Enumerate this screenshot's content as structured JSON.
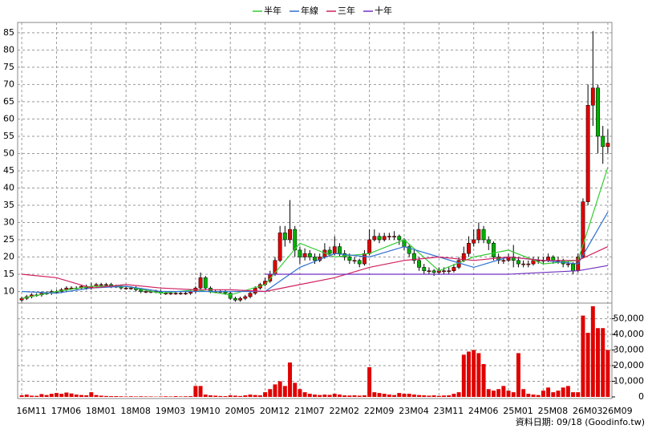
{
  "chart_data": {
    "type": "candlestick",
    "categories": [
      "16M11",
      null,
      null,
      null,
      null,
      null,
      null,
      "17M06",
      null,
      null,
      null,
      null,
      null,
      null,
      "18M01",
      null,
      null,
      null,
      null,
      null,
      null,
      "18M08",
      null,
      null,
      null,
      null,
      null,
      null,
      "19M03",
      null,
      null,
      null,
      null,
      null,
      null,
      "19M10",
      null,
      null,
      null,
      null,
      null,
      null,
      "20M05",
      null,
      null,
      null,
      null,
      null,
      null,
      "20M12",
      null,
      null,
      null,
      null,
      null,
      null,
      "21M07",
      null,
      null,
      null,
      null,
      null,
      null,
      "22M02",
      null,
      null,
      null,
      null,
      null,
      null,
      "22M09",
      null,
      null,
      null,
      null,
      null,
      null,
      "23M04",
      null,
      null,
      null,
      null,
      null,
      null,
      "23M11",
      null,
      null,
      null,
      null,
      null,
      null,
      "24M06",
      null,
      null,
      null,
      null,
      null,
      null,
      "25M01",
      null,
      null,
      null,
      null,
      null,
      null,
      "25M08",
      null,
      null,
      null,
      null,
      null,
      null,
      "26M03",
      null,
      null,
      null,
      null,
      null,
      "26M09"
    ],
    "open": [
      7.5,
      8,
      8.5,
      9,
      9,
      9.5,
      9.5,
      10,
      10,
      10.5,
      11,
      11,
      11,
      11.5,
      11,
      11.5,
      12,
      12,
      12,
      11.5,
      11.5,
      11,
      11,
      11,
      10.5,
      10,
      10,
      10,
      10,
      9.5,
      9.5,
      9.5,
      9.5,
      9.5,
      9.5,
      10,
      11,
      14,
      11,
      10,
      10,
      10,
      9.5,
      8,
      7.5,
      8,
      8.5,
      9.5,
      11,
      12,
      13,
      15,
      19,
      27,
      25,
      28,
      22,
      20,
      21,
      20,
      19,
      20,
      22,
      21,
      23,
      21,
      20,
      19,
      19,
      18,
      21,
      25,
      26,
      25,
      26,
      26,
      26,
      25,
      23,
      21,
      19,
      17,
      16,
      16,
      15.5,
      16,
      16,
      16,
      17,
      19,
      21,
      24,
      25,
      28,
      25,
      24,
      20,
      19,
      19,
      20,
      19,
      18,
      18,
      18,
      19,
      19,
      19,
      20,
      19,
      19,
      18,
      18,
      16,
      20,
      36,
      64,
      69,
      55,
      52
    ],
    "high": [
      8.5,
      9,
      9.5,
      9.5,
      10,
      10,
      10.5,
      10.5,
      11,
      11.5,
      11.5,
      11.5,
      12,
      12,
      12.5,
      12.5,
      12.5,
      12.5,
      12.5,
      12,
      12,
      11.5,
      11.5,
      11.5,
      11,
      10.5,
      10.5,
      10.5,
      10.5,
      10,
      10,
      10,
      10,
      10,
      10.5,
      11.5,
      15.5,
      14.5,
      11.5,
      10.5,
      10.5,
      10.5,
      10,
      8.5,
      8.5,
      9,
      10,
      11.5,
      12.5,
      14,
      16,
      20,
      29,
      29,
      36.5,
      29,
      23,
      22.5,
      22,
      21,
      21,
      24,
      23,
      26,
      24,
      22,
      21,
      20,
      19.5,
      22,
      28,
      28,
      27,
      27,
      27,
      27.5,
      26.5,
      25.5,
      23.5,
      22,
      20,
      18,
      17,
      16.5,
      17,
      17,
      17,
      18,
      20,
      23,
      26,
      28,
      30,
      29,
      26,
      24.5,
      21,
      20,
      21,
      23.5,
      20,
      19,
      19,
      20,
      20,
      20,
      21,
      20.5,
      20,
      19.5,
      19,
      18.5,
      21,
      37,
      70,
      85.5,
      70,
      58,
      57
    ],
    "low": [
      7,
      7.5,
      8,
      8.5,
      8.5,
      9,
      9,
      9.5,
      9.5,
      10,
      10.5,
      10.5,
      10.5,
      10.5,
      10.5,
      11,
      11.5,
      11.5,
      11,
      11,
      10.5,
      10.5,
      10.5,
      10,
      9.5,
      9.5,
      9.5,
      9.5,
      9,
      9,
      9,
      9,
      9,
      9,
      9,
      9.5,
      10.5,
      10.5,
      9.5,
      9.5,
      9.5,
      9,
      7.5,
      7,
      7,
      7.5,
      8,
      9,
      10.5,
      11.5,
      12.5,
      14.5,
      18.5,
      23,
      24,
      20,
      18,
      19,
      19,
      18,
      18.5,
      19.5,
      20,
      20.5,
      20,
      19,
      18,
      18,
      17,
      17.5,
      20.5,
      24.5,
      24,
      24.5,
      25,
      25,
      23.5,
      22,
      20,
      18,
      16,
      15,
      15,
      14.5,
      15,
      15,
      15,
      15.5,
      16.5,
      18.5,
      20,
      23,
      24,
      24,
      22,
      19,
      18,
      18,
      18.5,
      17,
      17,
      17,
      17,
      17.5,
      18,
      18,
      18.5,
      18,
      18,
      17,
      17,
      15,
      15.5,
      19.5,
      35,
      58,
      50,
      47,
      50
    ],
    "close": [
      8,
      8.5,
      9,
      9,
      9.5,
      9.5,
      10,
      10,
      10.5,
      11,
      11,
      11,
      11.5,
      11,
      11.5,
      12,
      12,
      12,
      11.5,
      11.5,
      11,
      11,
      11,
      10.5,
      10,
      10,
      10,
      10,
      9.5,
      9.5,
      9.5,
      9.5,
      9.5,
      9.5,
      10,
      11,
      14,
      11,
      10,
      10,
      10,
      9.5,
      8,
      7.5,
      8,
      8.5,
      9.5,
      11,
      12,
      13,
      15,
      19,
      27,
      25,
      28,
      22,
      20,
      21,
      20,
      19,
      20,
      22,
      21,
      23,
      21,
      20,
      19,
      19,
      18,
      21,
      25,
      26,
      25,
      26,
      26,
      26,
      25,
      23,
      21,
      19,
      17,
      16,
      16,
      15.5,
      16,
      16,
      16,
      17,
      19,
      21,
      24,
      25,
      28,
      25,
      24,
      20,
      19,
      19,
      20,
      19,
      18,
      18,
      18,
      19,
      19,
      19,
      20,
      19,
      19,
      18,
      18,
      16,
      20,
      36,
      64,
      69,
      55,
      52,
      53
    ],
    "volume": [
      1000,
      1500,
      800,
      700,
      1800,
      1200,
      2000,
      2500,
      2000,
      2800,
      2200,
      1500,
      1200,
      1000,
      3000,
      1200,
      800,
      600,
      500,
      500,
      400,
      300,
      400,
      300,
      400,
      300,
      300,
      200,
      300,
      400,
      300,
      500,
      300,
      400,
      500,
      7000,
      7000,
      1500,
      1000,
      800,
      600,
      500,
      1000,
      800,
      600,
      1000,
      1500,
      1200,
      1000,
      3000,
      5000,
      8000,
      10000,
      7000,
      22000,
      9000,
      5000,
      3000,
      2000,
      1500,
      1200,
      1500,
      1300,
      2000,
      1500,
      1000,
      900,
      1000,
      800,
      1000,
      19000,
      3000,
      2500,
      2000,
      1500,
      1200,
      2500,
      2000,
      2000,
      1500,
      1200,
      1000,
      800,
      1000,
      700,
      900,
      1000,
      2000,
      3000,
      27000,
      29000,
      30000,
      28000,
      21000,
      5000,
      4000,
      5000,
      7000,
      4000,
      3000,
      28000,
      5000,
      2000,
      1500,
      1200,
      4000,
      6000,
      3000,
      4000,
      6000,
      7000,
      3000,
      3000,
      52000,
      41000,
      58000,
      44000,
      44000,
      30000
    ],
    "up_color": "#e00000",
    "down_color": "#00b000",
    "volume_color": "#e00000",
    "series": [
      {
        "name": "半年",
        "color": "#33cc33",
        "x": [
          "16M11",
          "17M06",
          "18M01",
          "18M08",
          "19M03",
          "19M10",
          "20M05",
          "20M12",
          "21M07",
          "22M02",
          "22M09",
          "23M04",
          "23M11",
          "24M06",
          "25M01",
          "25M08",
          "26M03",
          "26M09"
        ],
        "values": [
          8,
          10,
          11.5,
          11.5,
          9.5,
          10.5,
          9,
          12,
          24,
          20,
          21,
          25,
          16,
          20,
          22,
          18,
          19,
          46
        ]
      },
      {
        "name": "年線",
        "color": "#3070d0",
        "x": [
          "16M11",
          "17M06",
          "18M01",
          "18M08",
          "19M03",
          "19M10",
          "20M05",
          "20M12",
          "21M07",
          "22M02",
          "22M09",
          "23M04",
          "23M11",
          "24M06",
          "25M01",
          "25M08",
          "26M03",
          "26M09"
        ],
        "values": [
          10,
          9.5,
          11,
          11.5,
          10,
          10,
          10,
          10,
          17,
          21,
          20,
          23,
          20,
          17,
          20,
          19,
          18,
          33
        ]
      },
      {
        "name": "三年",
        "color": "#d02060",
        "x": [
          "16M11",
          "17M06",
          "18M01",
          "18M08",
          "19M03",
          "19M10",
          "20M05",
          "20M12",
          "21M07",
          "22M02",
          "22M09",
          "23M04",
          "23M11",
          "24M06",
          "25M01",
          "25M08",
          "26M03",
          "26M09"
        ],
        "values": [
          15,
          14,
          11,
          12,
          11,
          10.5,
          10.5,
          10,
          12,
          14,
          17,
          19,
          20,
          19,
          20,
          19,
          19,
          23
        ]
      },
      {
        "name": "十年",
        "color": "#7030c0",
        "x": [
          "20M12",
          "21M07",
          "22M02",
          "22M09",
          "23M04",
          "23M11",
          "24M06",
          "25M01",
          "25M08",
          "26M03",
          "26M09"
        ],
        "values": [
          15,
          15,
          15,
          15,
          15,
          15,
          15,
          15,
          15.5,
          16,
          17.5
        ]
      }
    ],
    "ylim": [
      5,
      88
    ],
    "yticks": [
      10,
      15,
      20,
      25,
      30,
      35,
      40,
      45,
      50,
      55,
      60,
      65,
      70,
      75,
      80,
      85
    ],
    "y2lim": [
      0,
      60000
    ],
    "y2ticks": [
      0,
      {
        "value": 10000,
        "label": "10,000"
      },
      {
        "value": 20000,
        "label": "20,000"
      },
      {
        "value": 30000,
        "label": "30,000"
      },
      {
        "value": 40000,
        "label": "40,000"
      },
      {
        "value": 50000,
        "label": "50,000"
      }
    ],
    "grid": true,
    "footer": "資料日期: 09/18 (Goodinfo.tw)"
  }
}
